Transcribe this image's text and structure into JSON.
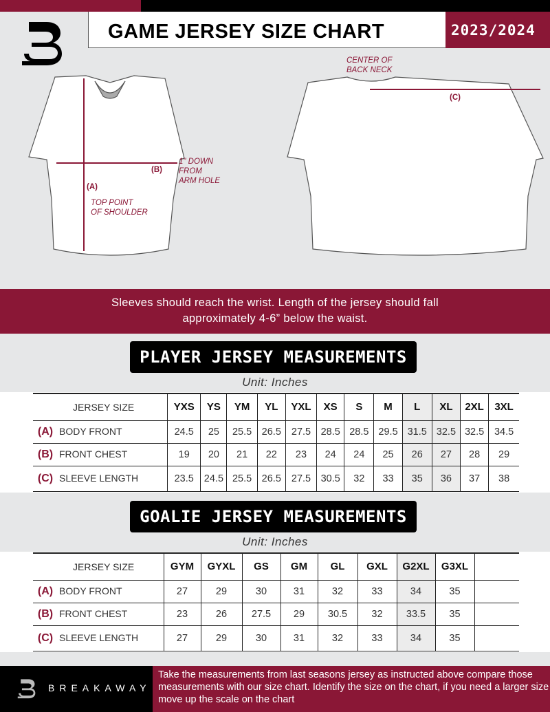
{
  "header": {
    "title": "GAME JERSEY SIZE CHART",
    "season": "2023/2024",
    "logo_letter": "B"
  },
  "diagram": {
    "center_back_neck": [
      "CENTER OF",
      "BACK NECK"
    ],
    "a_label": "(A)",
    "b_label": "(B)",
    "c_label": "(C)",
    "arm_hole": [
      "1\" DOWN",
      "FROM",
      "ARM HOLE"
    ],
    "top_shoulder": [
      "TOP POINT",
      "OF SHOULDER"
    ]
  },
  "banner": {
    "line1": "Sleeves should reach the wrist. Length of the jersey should fall",
    "line2": "approximately 4-6” below the waist."
  },
  "player": {
    "title": "PLAYER JERSEY MEASUREMENTS",
    "unit": "Unit: Inches",
    "size_header": "JERSEY SIZE",
    "sizes": [
      "YXS",
      "YS",
      "YM",
      "YL",
      "YXL",
      "XS",
      "S",
      "M",
      "L",
      "XL",
      "2XL",
      "3XL"
    ],
    "rows": [
      {
        "letter": "(A)",
        "label": "BODY FRONT",
        "values": [
          "24.5",
          "25",
          "25.5",
          "26.5",
          "27.5",
          "28.5",
          "28.5",
          "29.5",
          "31.5",
          "32.5",
          "32.5",
          "34.5"
        ]
      },
      {
        "letter": "(B)",
        "label": "FRONT CHEST",
        "values": [
          "19",
          "20",
          "21",
          "22",
          "23",
          "24",
          "24",
          "25",
          "26",
          "27",
          "28",
          "29"
        ]
      },
      {
        "letter": "(C)",
        "label": "SLEEVE LENGTH",
        "values": [
          "23.5",
          "24.5",
          "25.5",
          "26.5",
          "27.5",
          "30.5",
          "32",
          "33",
          "35",
          "36",
          "37",
          "38"
        ]
      }
    ]
  },
  "goalie": {
    "title": "GOALIE JERSEY MEASUREMENTS",
    "unit": "Unit: Inches",
    "size_header": "JERSEY SIZE",
    "sizes": [
      "GYM",
      "GYXL",
      "GS",
      "GM",
      "GL",
      "GXL",
      "G2XL",
      "G3XL",
      ""
    ],
    "rows": [
      {
        "letter": "(A)",
        "label": "BODY FRONT",
        "values": [
          "27",
          "29",
          "30",
          "31",
          "32",
          "33",
          "34",
          "35",
          ""
        ]
      },
      {
        "letter": "(B)",
        "label": "FRONT CHEST",
        "values": [
          "23",
          "26",
          "27.5",
          "29",
          "30.5",
          "32",
          "33.5",
          "35",
          ""
        ]
      },
      {
        "letter": "(C)",
        "label": "SLEEVE LENGTH",
        "values": [
          "27",
          "29",
          "30",
          "31",
          "32",
          "33",
          "34",
          "35",
          ""
        ]
      }
    ]
  },
  "footer": {
    "brand": "BREAKAWAY",
    "text": "Take the measurements from last seasons jersey as instructed above compare those measurements  with our size chart. Identify the size on the chart, if you need a larger size move up the scale on the chart"
  },
  "colors": {
    "accent": "#8a1736",
    "background": "#e6e7e8",
    "dark": "#000000"
  }
}
